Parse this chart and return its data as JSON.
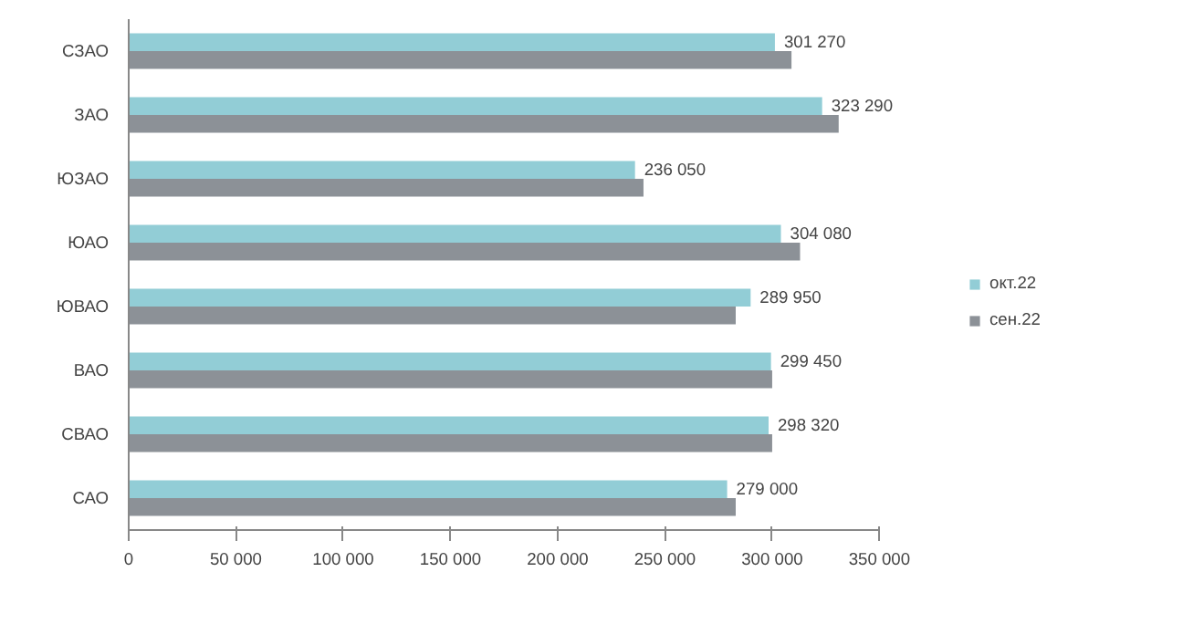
{
  "chart_data": {
    "type": "bar",
    "orientation": "horizontal",
    "categories": [
      "СЗАО",
      "ЗАО",
      "ЮЗАО",
      "ЮАО",
      "ЮВАО",
      "ВАО",
      "СВАО",
      "САО"
    ],
    "series": [
      {
        "name": "окт.22",
        "color": "#92cdd6",
        "values": [
          301270,
          323290,
          236050,
          304080,
          289950,
          299450,
          298320,
          279000
        ],
        "value_labels": [
          "301 270",
          "323 290",
          "236 050",
          "304 080",
          "289 950",
          "299 450",
          "298 320",
          "279 000"
        ]
      },
      {
        "name": "сен.22",
        "color": "#8c9197",
        "values": [
          309000,
          331000,
          240000,
          313000,
          283000,
          300000,
          300000,
          283000
        ]
      }
    ],
    "xlim": [
      0,
      350000
    ],
    "xticks": [
      0,
      {
        "value": 50000,
        "label": "50 000"
      },
      {
        "value": 100000,
        "label": "100 000"
      },
      {
        "value": 150000,
        "label": "150 000"
      },
      {
        "value": 200000,
        "label": "200 000"
      },
      {
        "value": 250000,
        "label": "250 000"
      },
      {
        "value": 300000,
        "label": "300 000"
      },
      {
        "value": 350000,
        "label": "350 000"
      }
    ],
    "grid": false,
    "legend": "right"
  }
}
